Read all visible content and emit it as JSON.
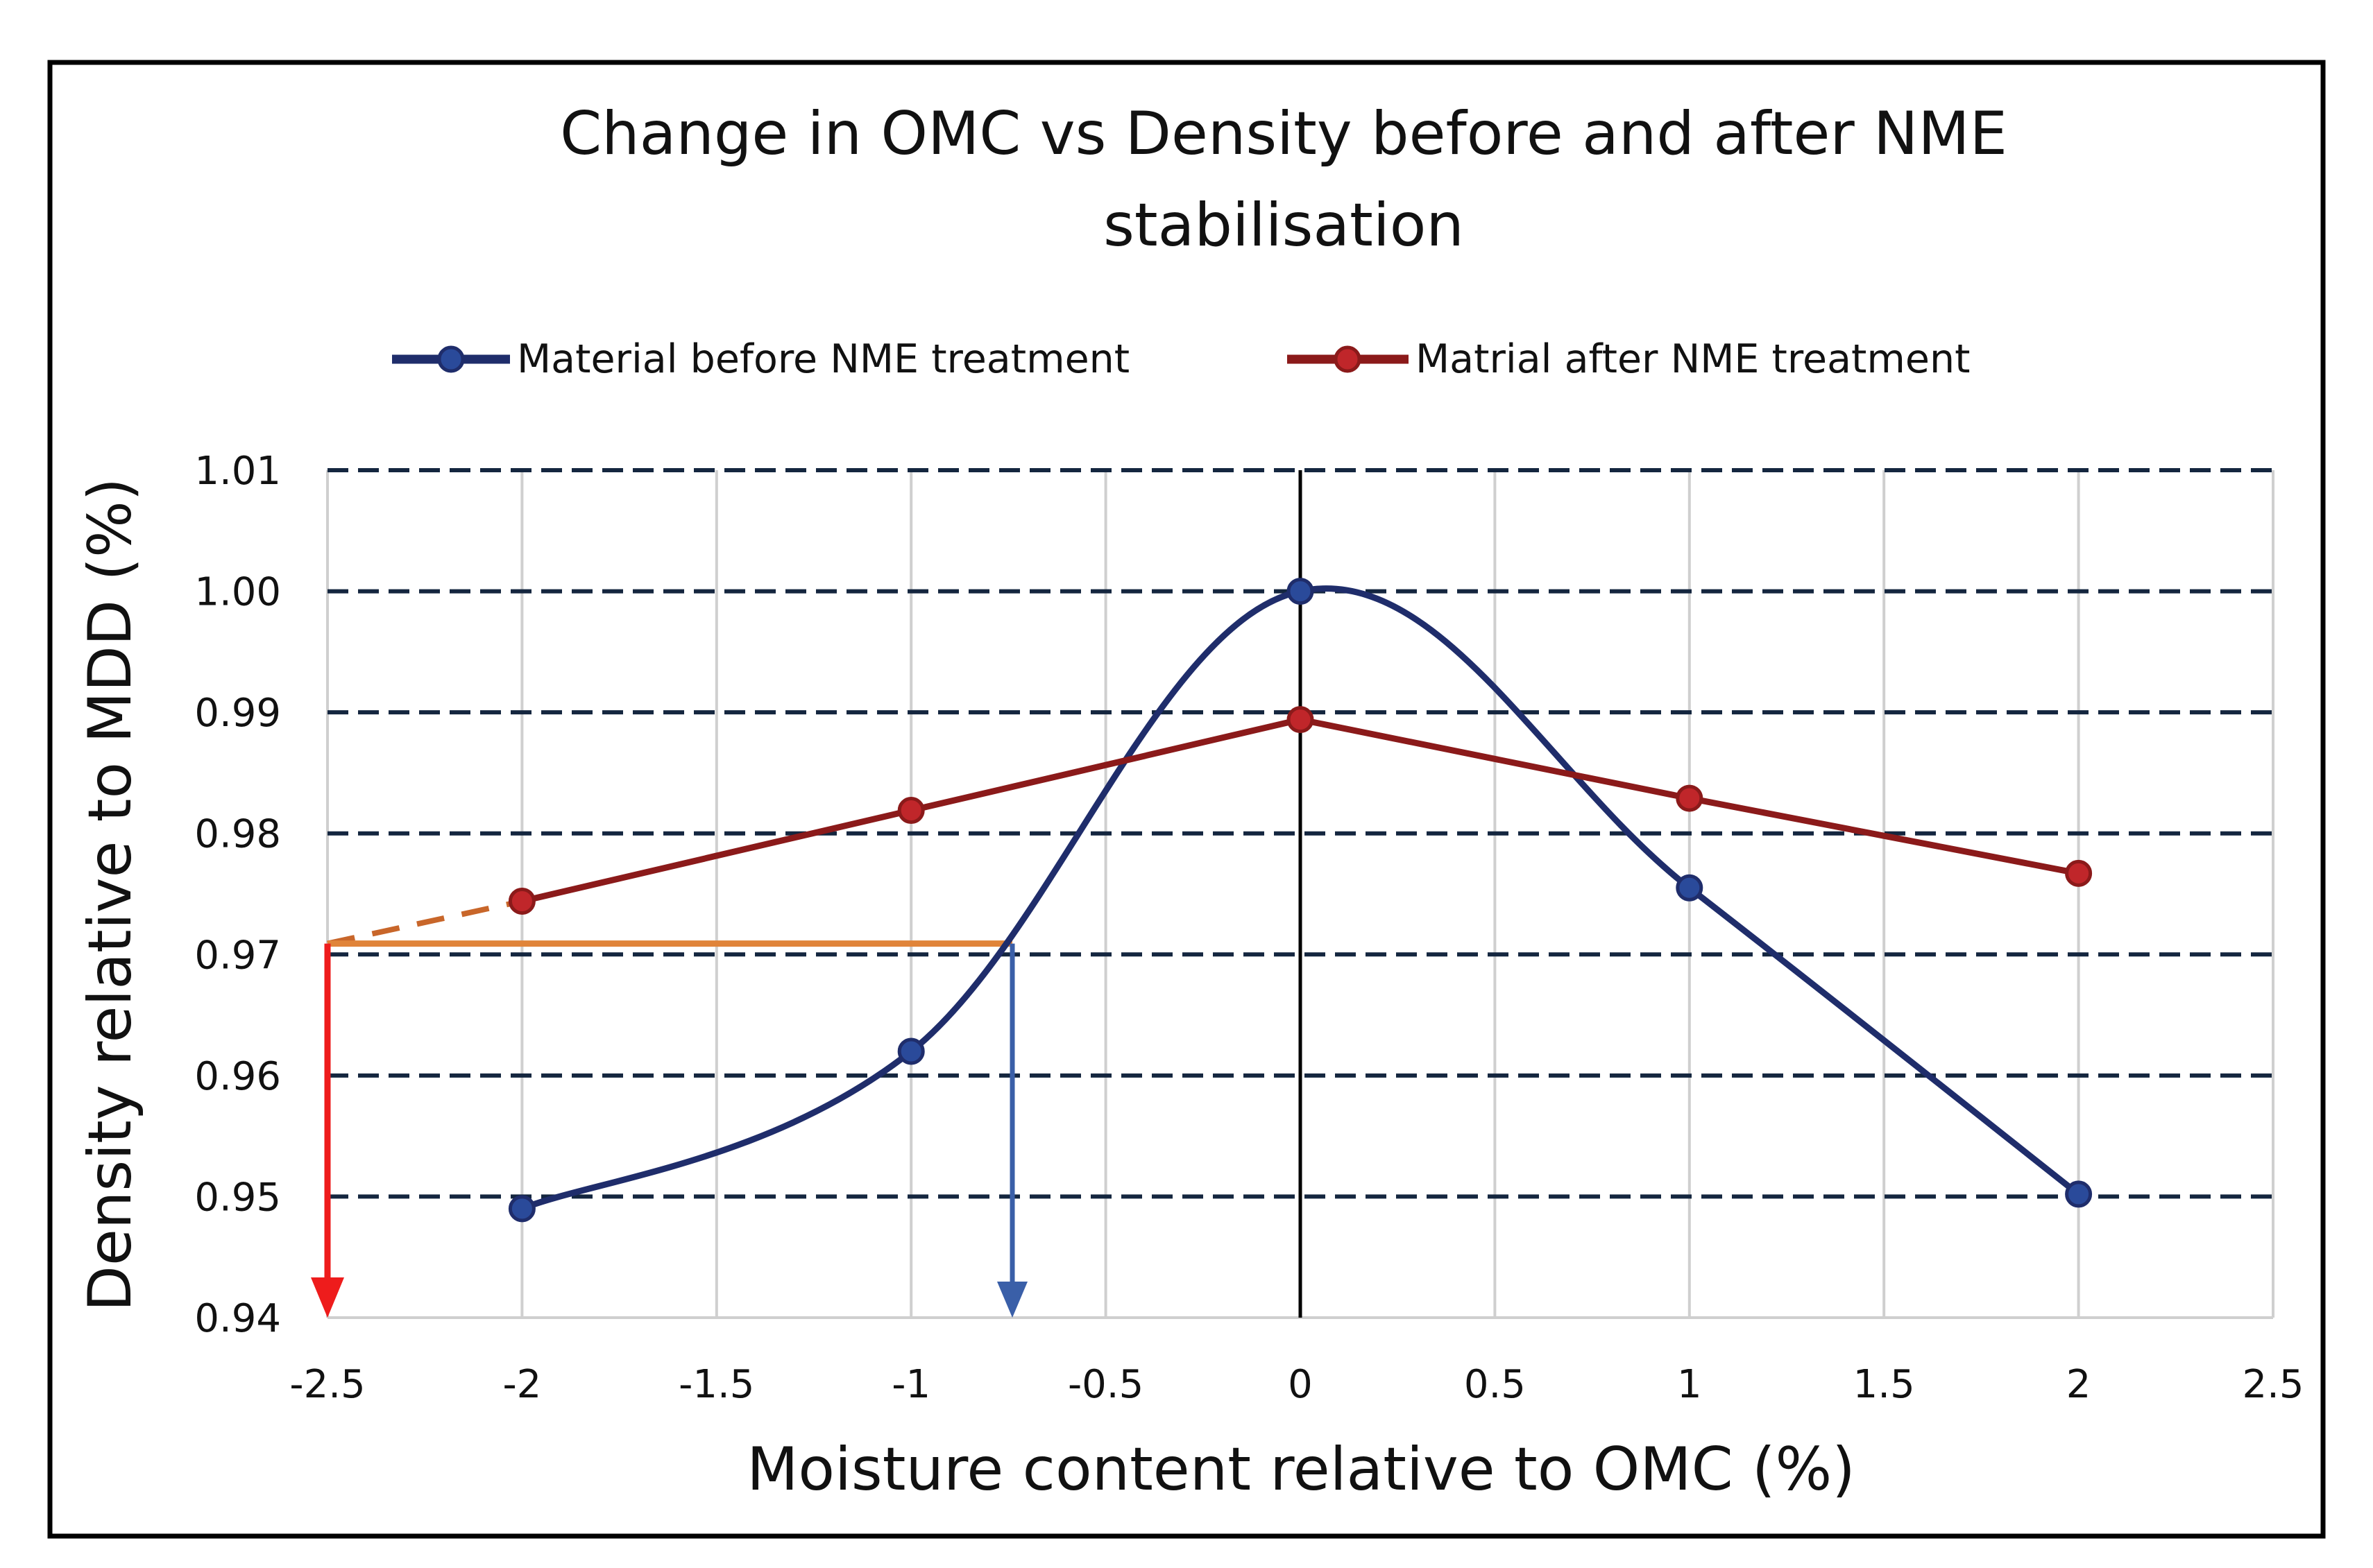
{
  "chart_data": {
    "type": "line",
    "title": "Change in OMC vs Density before and after NME stabilisation",
    "title_lines": [
      "Change in OMC vs Density before and after NME",
      "stabilisation"
    ],
    "xlabel": "Moisture content relative to OMC (%)",
    "ylabel": "Density relative to MDD (%)",
    "xlim": [
      -2.5,
      2.5
    ],
    "ylim": [
      0.94,
      1.01
    ],
    "x_ticks": [
      "-2.5",
      "-2",
      "-1.5",
      "-1",
      "-0.5",
      "0",
      "0.5",
      "1",
      "1.5",
      "2",
      "2.5"
    ],
    "x_tick_values": [
      -2.5,
      -2,
      -1.5,
      -1,
      -0.5,
      0,
      0.5,
      1,
      1.5,
      2,
      2.5
    ],
    "y_ticks": [
      "0.94",
      "0.95",
      "0.96",
      "0.97",
      "0.98",
      "0.99",
      "1.00",
      "1.01"
    ],
    "y_tick_values": [
      0.94,
      0.95,
      0.96,
      0.97,
      0.98,
      0.99,
      1.0,
      1.01
    ],
    "grid": true,
    "legend_position": "top",
    "series": [
      {
        "name": "Material before NME treatment",
        "color": "#1f2d6b",
        "smooth": true,
        "x": [
          -2,
          -1,
          0,
          1,
          2
        ],
        "y": [
          0.949,
          0.962,
          1.0,
          0.9755,
          0.9502
        ]
      },
      {
        "name": "Matrial after NME treatment",
        "color": "#8b1a1a",
        "smooth": false,
        "x": [
          -2,
          -1,
          0,
          1,
          2
        ],
        "y": [
          0.9744,
          0.9819,
          0.9894,
          0.9829,
          0.9767
        ]
      }
    ],
    "annotations": {
      "dashed_extension": {
        "color": "#c8662a",
        "from": [
          -2.5,
          0.9709
        ],
        "to": [
          -2,
          0.9744
        ]
      },
      "horizontal_line": {
        "color": "#e0843a",
        "from": [
          -2.5,
          0.9709
        ],
        "to": [
          -0.74,
          0.9709
        ]
      },
      "red_arrow": {
        "color": "#ee1c1c",
        "from": [
          -2.5,
          0.9709
        ],
        "to": [
          -2.5,
          0.94
        ]
      },
      "blue_arrow": {
        "color": "#3a5fa8",
        "from": [
          -0.74,
          0.9709
        ],
        "to": [
          -0.74,
          0.94
        ]
      },
      "zero_line": {
        "color": "#000000",
        "x": 0
      }
    }
  }
}
